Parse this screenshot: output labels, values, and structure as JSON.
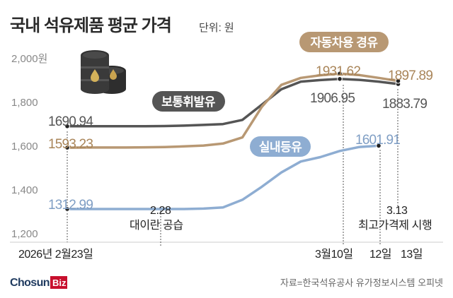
{
  "header": {
    "title": "국내 석유제품 평균 가격",
    "unit": "단위: 원"
  },
  "chart_data": {
    "type": "line",
    "y_ticks": [
      "2,000원",
      "1,800",
      "1,600",
      "1,400",
      "1,200"
    ],
    "ylim": [
      1200,
      2000
    ],
    "x_labels": {
      "start": "2026년 2월23일",
      "mar10": "3월10일",
      "d12": "12일",
      "d13": "13일"
    },
    "events": [
      {
        "date": "2.28",
        "label": "대이란 공습"
      },
      {
        "date": "3.13",
        "label": "최고가격제 시행"
      }
    ],
    "series": [
      {
        "name": "보통휘발유",
        "color": "#555555",
        "values": [
          1690.94,
          1691,
          1691,
          1691,
          1691,
          1692,
          1694,
          1697,
          1701,
          1720,
          1790,
          1860,
          1895,
          1902,
          1906.95,
          1903,
          1895,
          1883.79
        ],
        "labels": [
          {
            "index": 0,
            "text": "1690.94"
          },
          {
            "index": 14,
            "text": "1906.95"
          },
          {
            "index": 17,
            "text": "1883.79"
          }
        ]
      },
      {
        "name": "자동차용 경유",
        "color": "#b89873",
        "values": [
          1593.23,
          1594,
          1594,
          1594,
          1595,
          1596,
          1599,
          1603,
          1612,
          1640,
          1780,
          1880,
          1912,
          1924,
          1931.62,
          1925,
          1912,
          1897.89
        ],
        "labels": [
          {
            "index": 0,
            "text": "1593.23"
          },
          {
            "index": 14,
            "text": "1931.62"
          },
          {
            "index": 17,
            "text": "1897.89"
          }
        ]
      },
      {
        "name": "실내등유",
        "color": "#8eadd2",
        "values": [
          1312.99,
          1313,
          1313,
          1313,
          1313,
          1313,
          1313,
          1315,
          1320,
          1355,
          1415,
          1480,
          1530,
          1550,
          1578,
          1596,
          1601.91
        ],
        "labels": [
          {
            "index": 0,
            "text": "1312.99"
          },
          {
            "index": 16,
            "text": "1601.91"
          }
        ]
      }
    ],
    "grid": false,
    "legend": "inline labels on lines"
  },
  "footer": {
    "logo_main": "Chosun",
    "logo_biz": "Biz",
    "source": "자료=한국석유공사 유가정보시스템 오피넷"
  }
}
